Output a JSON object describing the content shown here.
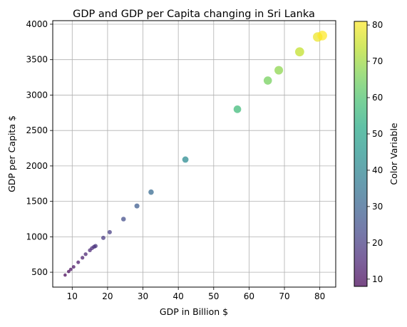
{
  "chart_data": {
    "type": "scatter",
    "title": "GDP and GDP per Capita changing in Sri Lanka",
    "xlabel": "GDP in Billion $",
    "ylabel": "GDP per Capita $",
    "xlim": [
      4.5,
      84.5
    ],
    "ylim": [
      290,
      4050
    ],
    "xticks": [
      10,
      20,
      30,
      40,
      50,
      60,
      70,
      80
    ],
    "yticks": [
      500,
      1000,
      1500,
      2000,
      2500,
      3000,
      3500,
      4000
    ],
    "grid": true,
    "colorbar": {
      "label": "Color Variable",
      "range": [
        8,
        81
      ],
      "ticks": [
        10,
        20,
        30,
        40,
        50,
        60,
        70,
        80
      ],
      "colormap": "viridis"
    },
    "points": [
      {
        "x": 8.0,
        "y": 460,
        "c": 8
      },
      {
        "x": 9.0,
        "y": 510,
        "c": 9
      },
      {
        "x": 9.6,
        "y": 540,
        "c": 10
      },
      {
        "x": 10.4,
        "y": 575,
        "c": 11
      },
      {
        "x": 11.7,
        "y": 640,
        "c": 12
      },
      {
        "x": 12.9,
        "y": 705,
        "c": 13
      },
      {
        "x": 13.8,
        "y": 755,
        "c": 14
      },
      {
        "x": 15.0,
        "y": 810,
        "c": 15
      },
      {
        "x": 15.6,
        "y": 840,
        "c": 16
      },
      {
        "x": 16.2,
        "y": 860,
        "c": 17
      },
      {
        "x": 16.6,
        "y": 870,
        "c": 18
      },
      {
        "x": 18.8,
        "y": 985,
        "c": 19
      },
      {
        "x": 20.6,
        "y": 1065,
        "c": 20
      },
      {
        "x": 24.5,
        "y": 1250,
        "c": 24
      },
      {
        "x": 28.3,
        "y": 1435,
        "c": 28
      },
      {
        "x": 32.3,
        "y": 1630,
        "c": 32
      },
      {
        "x": 42.0,
        "y": 2090,
        "c": 42
      },
      {
        "x": 56.7,
        "y": 2800,
        "c": 57
      },
      {
        "x": 65.3,
        "y": 3205,
        "c": 65
      },
      {
        "x": 68.4,
        "y": 3350,
        "c": 68
      },
      {
        "x": 74.3,
        "y": 3610,
        "c": 74
      },
      {
        "x": 79.4,
        "y": 3820,
        "c": 79
      },
      {
        "x": 80.7,
        "y": 3840,
        "c": 81
      }
    ]
  }
}
